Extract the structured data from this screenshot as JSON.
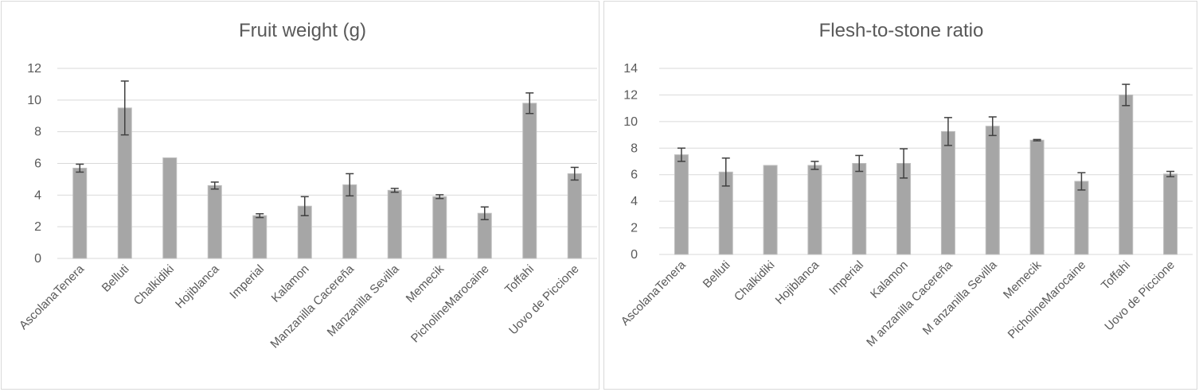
{
  "chart_data": [
    {
      "type": "bar",
      "title": "Fruit weight (g)",
      "categories": [
        "AscolanaTenera",
        "Belluti",
        "Chalkidiki",
        "Hojiblanca",
        "Imperial",
        "Kalamon",
        "Manzanilla Cacereña",
        "Manzanilla Sevilla",
        "Memecik",
        "PicholineMarocaine",
        "Toffahi",
        "Uovo de Piccione"
      ],
      "values": [
        5.7,
        9.5,
        6.35,
        4.6,
        2.7,
        3.3,
        4.65,
        4.3,
        3.9,
        2.85,
        9.8,
        5.35
      ],
      "errors": [
        0.25,
        1.7,
        0,
        0.22,
        0.12,
        0.6,
        0.7,
        0.12,
        0.12,
        0.4,
        0.65,
        0.4
      ],
      "yticks": [
        "0",
        "2",
        "4",
        "6",
        "8",
        "10",
        "12"
      ],
      "ylim": [
        0,
        12
      ],
      "xlabel": "",
      "ylabel": "",
      "grid": true,
      "legend": "none",
      "colors": {
        "bar": "#a6a6a6",
        "grid": "#d9d9d9",
        "error": "#404040"
      }
    },
    {
      "type": "bar",
      "title": "Flesh-to-stone ratio",
      "categories": [
        "AscolanaTenera",
        "Belluti",
        "Chalkidiki",
        "Hojiblanca",
        "Imperial",
        "Kalamon",
        "M anzanilla Cacereña",
        "M anzanilla Sevilla",
        "Memecik",
        "PicholineMarocaine",
        "Toffahi",
        "Uovo de Piccione"
      ],
      "values": [
        7.5,
        6.2,
        6.7,
        6.7,
        6.85,
        6.85,
        9.25,
        9.65,
        8.6,
        5.5,
        12.0,
        6.05
      ],
      "errors": [
        0.5,
        1.05,
        0,
        0.3,
        0.6,
        1.1,
        1.05,
        0.7,
        0.05,
        0.65,
        0.8,
        0.2
      ],
      "yticks": [
        "0",
        "2",
        "4",
        "6",
        "8",
        "10",
        "12",
        "14"
      ],
      "ylim": [
        0,
        14
      ],
      "xlabel": "",
      "ylabel": "",
      "grid": true,
      "legend": "none",
      "colors": {
        "bar": "#a6a6a6",
        "grid": "#d9d9d9",
        "error": "#404040"
      }
    }
  ]
}
